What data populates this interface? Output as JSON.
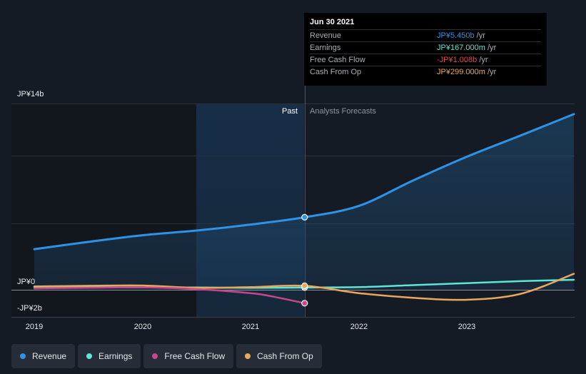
{
  "chart_data": {
    "type": "line",
    "title": "",
    "y_axis_labels": [
      "JP¥14b",
      "JP¥0",
      "-JP¥2b"
    ],
    "ylim": [
      -2,
      14
    ],
    "x_ticks": [
      "2019",
      "2020",
      "2021",
      "2022",
      "2023"
    ],
    "x_tick_values": [
      2019,
      2020,
      2021,
      2022,
      2023
    ],
    "xlim": [
      2018.8,
      2023.99
    ],
    "divider_x": 2021.5,
    "past_label": "Past",
    "forecast_label": "Analysts Forecasts",
    "series": [
      {
        "name": "Revenue",
        "color": "#2e93e6",
        "filled": true,
        "points": [
          [
            2019.0,
            3.05
          ],
          [
            2019.5,
            3.6
          ],
          [
            2020.0,
            4.1
          ],
          [
            2020.5,
            4.45
          ],
          [
            2021.0,
            4.9
          ],
          [
            2021.5,
            5.45
          ],
          [
            2022.0,
            6.3
          ],
          [
            2022.5,
            8.2
          ],
          [
            2023.0,
            10.0
          ],
          [
            2023.5,
            11.6
          ],
          [
            2023.99,
            13.2
          ]
        ]
      },
      {
        "name": "Earnings",
        "color": "#5fe5d5",
        "points": [
          [
            2019.0,
            0.2
          ],
          [
            2019.5,
            0.2
          ],
          [
            2020.0,
            0.18
          ],
          [
            2020.5,
            0.17
          ],
          [
            2021.0,
            0.15
          ],
          [
            2021.5,
            0.167
          ],
          [
            2022.0,
            0.2
          ],
          [
            2022.5,
            0.35
          ],
          [
            2023.0,
            0.5
          ],
          [
            2023.5,
            0.65
          ],
          [
            2023.99,
            0.75
          ]
        ]
      },
      {
        "name": "Free Cash Flow",
        "color": "#c8468e",
        "points": [
          [
            2019.0,
            0.1
          ],
          [
            2019.5,
            0.15
          ],
          [
            2020.0,
            0.18
          ],
          [
            2020.5,
            0.05
          ],
          [
            2021.0,
            -0.25
          ],
          [
            2021.2,
            -0.5
          ],
          [
            2021.5,
            -1.008
          ]
        ]
      },
      {
        "name": "Cash From Op",
        "color": "#e8a85c",
        "points": [
          [
            2019.0,
            0.25
          ],
          [
            2019.5,
            0.3
          ],
          [
            2020.0,
            0.32
          ],
          [
            2020.5,
            0.15
          ],
          [
            2021.0,
            0.2
          ],
          [
            2021.5,
            0.299
          ],
          [
            2022.0,
            -0.25
          ],
          [
            2022.5,
            -0.6
          ],
          [
            2023.0,
            -0.75
          ],
          [
            2023.5,
            -0.3
          ],
          [
            2023.99,
            1.2
          ]
        ]
      }
    ],
    "highlight_x": 2021.5
  },
  "tooltip": {
    "date": "Jun 30 2021",
    "rows": [
      {
        "label": "Revenue",
        "value": "JP¥5.450b",
        "unit": " /yr",
        "color": "#2e93e6"
      },
      {
        "label": "Earnings",
        "value": "JP¥167.000m",
        "unit": " /yr",
        "color": "#5fe5d5"
      },
      {
        "label": "Free Cash Flow",
        "value": "-JP¥1.008b",
        "unit": " /yr",
        "color": "#e64545"
      },
      {
        "label": "Cash From Op",
        "value": "JP¥299.000m",
        "unit": " /yr",
        "color": "#e8a85c"
      }
    ]
  },
  "legend": [
    {
      "label": "Revenue",
      "color": "#2e93e6"
    },
    {
      "label": "Earnings",
      "color": "#5fe5d5"
    },
    {
      "label": "Free Cash Flow",
      "color": "#c8468e"
    },
    {
      "label": "Cash From Op",
      "color": "#e8a85c"
    }
  ]
}
